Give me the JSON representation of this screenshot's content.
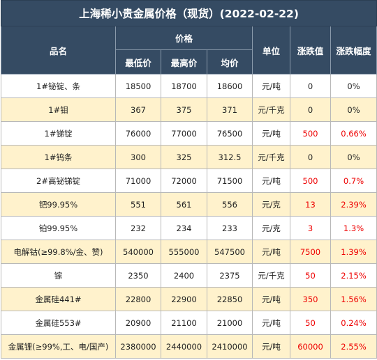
{
  "title": "上海稀小贵金属价格（现货）(2022-02-22)",
  "headers": {
    "name": "品名",
    "price_group": "价格",
    "low": "最低价",
    "high": "最高价",
    "avg": "均价",
    "unit": "单位",
    "change": "涨跌值",
    "change_pct": "涨跌幅度"
  },
  "colors": {
    "header_bg": "#354b63",
    "alt_row_bg": "#fff2cc",
    "rise_text": "#ee0000"
  },
  "rows": [
    {
      "name": "1#铋锭、条",
      "low": "18500",
      "high": "18700",
      "avg": "18600",
      "unit": "元/吨",
      "change": "0",
      "pct": "0%"
    },
    {
      "name": "1#钼",
      "low": "367",
      "high": "375",
      "avg": "371",
      "unit": "元/千克",
      "change": "0",
      "pct": "0%"
    },
    {
      "name": "1#锑锭",
      "low": "76000",
      "high": "77000",
      "avg": "76500",
      "unit": "元/吨",
      "change": "500",
      "pct": "0.66%"
    },
    {
      "name": "1#钨条",
      "low": "300",
      "high": "325",
      "avg": "312.5",
      "unit": "元/千克",
      "change": "0",
      "pct": "0%"
    },
    {
      "name": "2#高铋锑锭",
      "low": "71000",
      "high": "72000",
      "avg": "71500",
      "unit": "元/吨",
      "change": "500",
      "pct": "0.7%"
    },
    {
      "name": "钯99.95%",
      "low": "551",
      "high": "561",
      "avg": "556",
      "unit": "元/克",
      "change": "13",
      "pct": "2.39%"
    },
    {
      "name": "铂99.95%",
      "low": "232",
      "high": "234",
      "avg": "233",
      "unit": "元/克",
      "change": "3",
      "pct": "1.3%"
    },
    {
      "name": "电解钴(≥99.8%/金、赞)",
      "low": "540000",
      "high": "555000",
      "avg": "547500",
      "unit": "元/吨",
      "change": "7500",
      "pct": "1.39%"
    },
    {
      "name": "镓",
      "low": "2350",
      "high": "2400",
      "avg": "2375",
      "unit": "元/千克",
      "change": "50",
      "pct": "2.15%"
    },
    {
      "name": "金属硅441#",
      "low": "22800",
      "high": "22900",
      "avg": "22850",
      "unit": "元/吨",
      "change": "350",
      "pct": "1.56%"
    },
    {
      "name": "金属硅553#",
      "low": "20900",
      "high": "21100",
      "avg": "21000",
      "unit": "元/吨",
      "change": "50",
      "pct": "0.24%"
    },
    {
      "name": "金属锂(≥99%,工、电/国产)",
      "low": "2380000",
      "high": "2440000",
      "avg": "2410000",
      "unit": "元/吨",
      "change": "60000",
      "pct": "2.55%"
    }
  ]
}
